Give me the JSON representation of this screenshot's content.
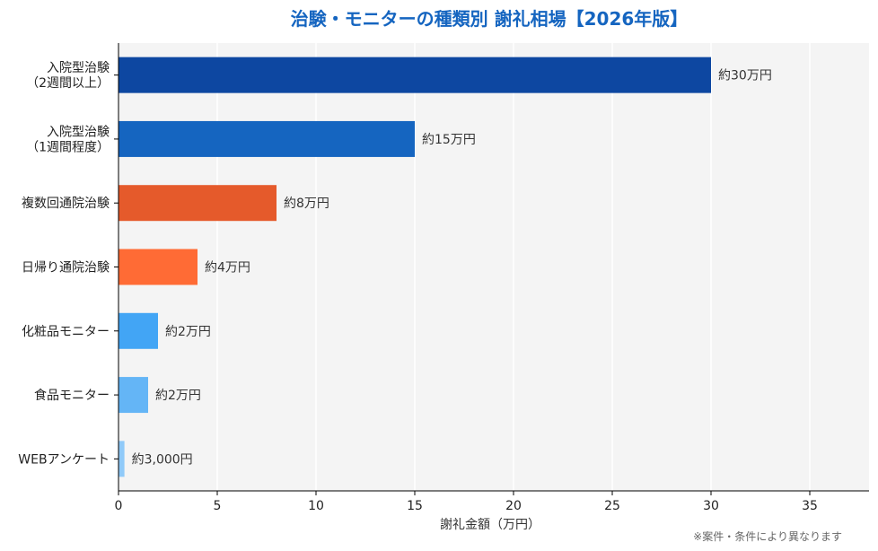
{
  "chart_data": {
    "type": "bar",
    "orientation": "horizontal",
    "title": "治験・モニターの種類別 謝礼相場【2026年版】",
    "xlabel": "謝礼金額（万円）",
    "ylabel": "",
    "xlim": [
      0,
      38
    ],
    "xticks": [
      0,
      5,
      10,
      15,
      20,
      25,
      30,
      35
    ],
    "grid": true,
    "categories": [
      "入院型治験\n（2週間以上）",
      "入院型治験\n（1週間程度）",
      "複数回通院治験",
      "日帰り通院治験",
      "化粧品モニター",
      "食品モニター",
      "WEBアンケート"
    ],
    "values": [
      30,
      15,
      8,
      4,
      2,
      1.5,
      0.3
    ],
    "data_labels": [
      "約30万円",
      "約15万円",
      "約8万円",
      "約4万円",
      "約2万円",
      "約2万円",
      "約3,000円"
    ],
    "colors": [
      "#0d47a1",
      "#1565c0",
      "#e55a2b",
      "#ff6b35",
      "#42a5f5",
      "#64b5f6",
      "#90caf9"
    ],
    "footnote": "※案件・条件により異なります"
  },
  "style": {
    "title_color": "#1565c0",
    "plot_bg": "#f4f4f4",
    "grid_color": "#ffffff",
    "text_color": "#222222",
    "label_color": "#333333",
    "note_color": "#666666"
  }
}
